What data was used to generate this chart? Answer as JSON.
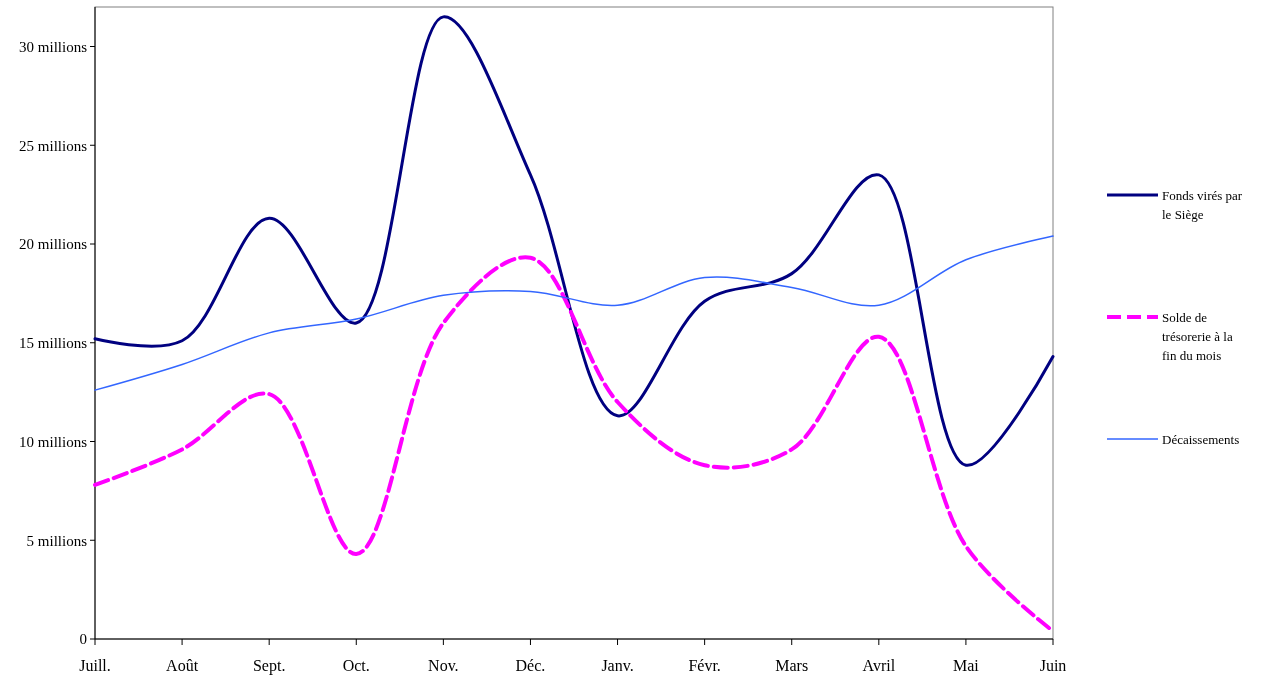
{
  "chart_data": {
    "type": "line",
    "categories": [
      "Juill.",
      "Août",
      "Sept.",
      "Oct.",
      "Nov.",
      "Déc.",
      "Janv.",
      "Févr.",
      "Mars",
      "Avril",
      "Mai",
      "Juin"
    ],
    "ylim": [
      0,
      32
    ],
    "yticks": [
      0,
      {
        "value": 5,
        "label": "5 millions"
      },
      {
        "value": 10,
        "label": "10 millions"
      },
      {
        "value": 15,
        "label": "15 millions"
      },
      {
        "value": 20,
        "label": "20 millions"
      },
      {
        "value": 25,
        "label": "25 millions"
      },
      {
        "value": 30,
        "label": "30 millions"
      }
    ],
    "grid": false,
    "legend": "right",
    "marker": "none",
    "series": [
      {
        "name": "Fonds virés par le Siège",
        "color": "#000080",
        "line_style": "solid",
        "values": [
          15.2,
          15.1,
          21.3,
          16.0,
          31.5,
          23.5,
          11.3,
          17.1,
          18.5,
          23.5,
          8.8,
          14.3
        ]
      },
      {
        "name": "Solde de trésorerie à la fin du mois",
        "color": "#ff00ff",
        "line_style": "dashed",
        "values": [
          7.8,
          9.6,
          12.4,
          4.3,
          16.0,
          19.3,
          12.0,
          8.8,
          9.6,
          15.3,
          4.7,
          0.4
        ]
      },
      {
        "name": "Décaissements",
        "color": "#3366ff",
        "line_style": "solid",
        "values": [
          12.6,
          13.9,
          15.5,
          16.2,
          17.4,
          17.6,
          16.9,
          18.3,
          17.8,
          16.9,
          19.2,
          20.4
        ]
      }
    ]
  }
}
